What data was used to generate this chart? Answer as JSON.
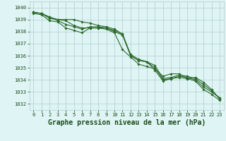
{
  "x": [
    0,
    1,
    2,
    3,
    4,
    5,
    6,
    7,
    8,
    9,
    10,
    11,
    12,
    13,
    14,
    15,
    16,
    17,
    18,
    19,
    20,
    21,
    22,
    23
  ],
  "series": [
    [
      1039.6,
      1039.5,
      1039.2,
      1039.0,
      1039.0,
      1039.0,
      1038.8,
      1038.7,
      1038.5,
      1038.4,
      1038.2,
      1037.8,
      1036.0,
      1035.6,
      1035.5,
      1034.8,
      1033.9,
      1034.1,
      1034.2,
      1034.1,
      1033.9,
      1033.2,
      1032.8,
      1032.3
    ],
    [
      1039.6,
      1039.5,
      1039.1,
      1039.0,
      1038.9,
      1038.5,
      1038.3,
      1038.3,
      1038.3,
      1038.3,
      1038.1,
      1037.8,
      1036.1,
      1035.7,
      1035.5,
      1035.0,
      1034.0,
      1034.1,
      1034.3,
      1034.2,
      1034.0,
      1033.4,
      1033.0,
      1032.5
    ],
    [
      1039.6,
      1039.5,
      1039.2,
      1038.9,
      1038.6,
      1038.4,
      1038.2,
      1038.4,
      1038.4,
      1038.3,
      1038.0,
      1037.7,
      1036.0,
      1035.6,
      1035.5,
      1035.2,
      1034.1,
      1034.2,
      1034.4,
      1034.3,
      1034.1,
      1033.6,
      1033.1,
      1032.5
    ],
    [
      1039.5,
      1039.4,
      1038.9,
      1038.8,
      1038.3,
      1038.1,
      1037.9,
      1038.3,
      1038.3,
      1038.2,
      1037.9,
      1036.5,
      1035.9,
      1035.3,
      1035.1,
      1034.9,
      1034.3,
      1034.5,
      1034.5,
      1034.1,
      1034.2,
      1033.8,
      1033.2,
      1032.4
    ]
  ],
  "line_color": "#2d6a2d",
  "marker": "D",
  "markersize": 1.8,
  "linewidth": 0.8,
  "background_color": "#dff4f4",
  "grid_color": "#aecece",
  "xlabel": "Graphe pression niveau de la mer (hPa)",
  "xlabel_color": "#1a4a1a",
  "tick_color": "#1a4a1a",
  "ylim": [
    1031.5,
    1040.5
  ],
  "xlim": [
    -0.5,
    23.5
  ],
  "yticks": [
    1032,
    1033,
    1034,
    1035,
    1036,
    1037,
    1038,
    1039,
    1040
  ],
  "xticks": [
    0,
    1,
    2,
    3,
    4,
    5,
    6,
    7,
    8,
    9,
    10,
    11,
    12,
    13,
    14,
    15,
    16,
    17,
    18,
    19,
    20,
    21,
    22,
    23
  ],
  "tick_fontsize": 5.0,
  "xlabel_fontsize": 7.0
}
